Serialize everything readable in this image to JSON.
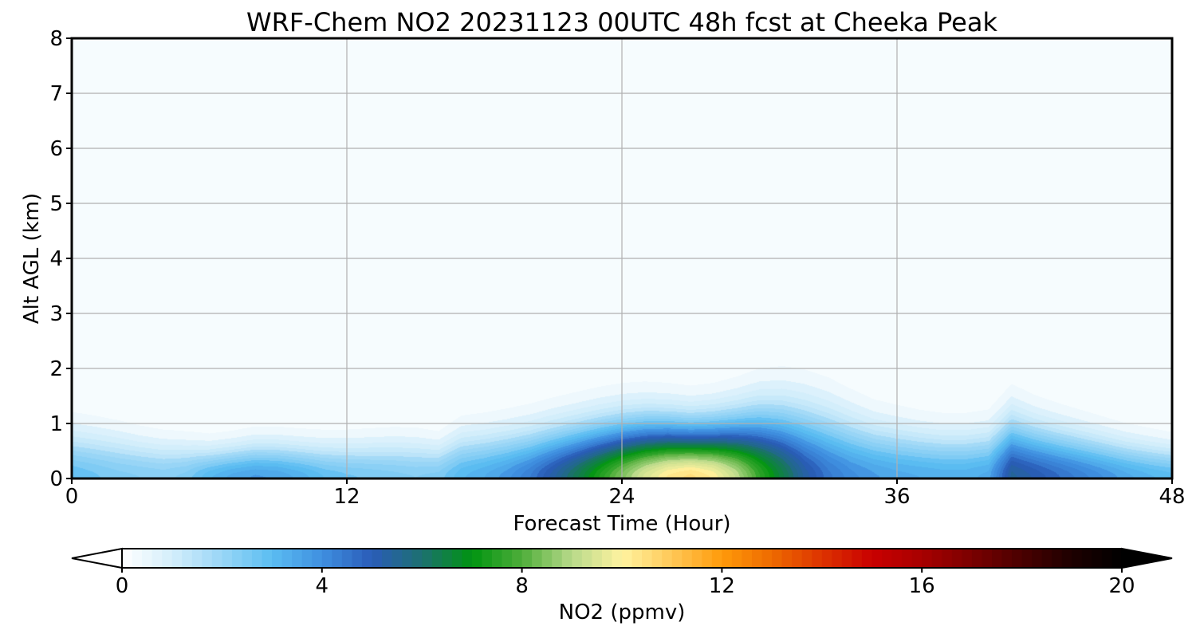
{
  "chart_data": {
    "type": "heatmap",
    "title": "WRF-Chem NO2  20231123 00UTC 48h fcst at Cheeka Peak",
    "xlabel": "Forecast Time (Hour)",
    "ylabel": "Alt AGL (km)",
    "xlim": [
      0,
      48
    ],
    "ylim": [
      0,
      8
    ],
    "x_ticks": [
      "0",
      "12",
      "24",
      "36",
      "48"
    ],
    "y_ticks": [
      "0",
      "1",
      "2",
      "3",
      "4",
      "5",
      "6",
      "7",
      "8"
    ],
    "grid": true,
    "colorbar": {
      "label": "NO2  (ppmv)",
      "range": [
        0,
        20
      ],
      "ticks": [
        "0",
        "4",
        "8",
        "12",
        "16",
        "20"
      ],
      "extend": "both",
      "colors": [
        {
          "v": 0,
          "c": "#ffffff"
        },
        {
          "v": 1,
          "c": "#d4eefb"
        },
        {
          "v": 2,
          "c": "#99d6f6"
        },
        {
          "v": 3,
          "c": "#5bbdf2"
        },
        {
          "v": 4,
          "c": "#3f8fe0"
        },
        {
          "v": 5,
          "c": "#2a5cb8"
        },
        {
          "v": 6,
          "c": "#1d7070"
        },
        {
          "v": 7,
          "c": "#009411"
        },
        {
          "v": 8,
          "c": "#4fae3a"
        },
        {
          "v": 9,
          "c": "#b8d98a"
        },
        {
          "v": 10,
          "c": "#fff3a0"
        },
        {
          "v": 11,
          "c": "#ffc857"
        },
        {
          "v": 12,
          "c": "#ff9a0a"
        },
        {
          "v": 13,
          "c": "#ee6a00"
        },
        {
          "v": 14,
          "c": "#dd3300"
        },
        {
          "v": 15,
          "c": "#c90000"
        },
        {
          "v": 16,
          "c": "#a80000"
        },
        {
          "v": 17,
          "c": "#7a0000"
        },
        {
          "v": 18,
          "c": "#4a0000"
        },
        {
          "v": 19,
          "c": "#1e0000"
        },
        {
          "v": 20,
          "c": "#000000"
        }
      ]
    },
    "field": {
      "hours": [
        0,
        1,
        2,
        3,
        4,
        5,
        6,
        7,
        8,
        9,
        10,
        11,
        12,
        13,
        14,
        15,
        16,
        17,
        18,
        19,
        20,
        21,
        22,
        23,
        24,
        25,
        26,
        27,
        28,
        29,
        30,
        31,
        32,
        33,
        34,
        35,
        36,
        37,
        38,
        39,
        40,
        41,
        42,
        43,
        44,
        45,
        46,
        47,
        48
      ],
      "surface_ppmv": [
        3.0,
        2.8,
        2.6,
        2.5,
        2.4,
        2.6,
        3.2,
        3.6,
        3.8,
        3.7,
        3.4,
        3.0,
        2.8,
        2.7,
        2.6,
        2.5,
        2.6,
        3.2,
        3.5,
        3.9,
        4.5,
        5.4,
        6.4,
        7.5,
        8.6,
        9.6,
        10.3,
        10.6,
        10.2,
        9.2,
        7.8,
        6.6,
        5.4,
        4.6,
        4.1,
        3.8,
        3.6,
        3.5,
        3.4,
        3.4,
        3.6,
        5.6,
        5.2,
        4.8,
        4.4,
        4.0,
        3.6,
        3.3,
        3.1
      ],
      "mixing_depth_km": [
        0.75,
        0.72,
        0.68,
        0.62,
        0.58,
        0.55,
        0.5,
        0.52,
        0.56,
        0.56,
        0.55,
        0.55,
        0.56,
        0.58,
        0.6,
        0.6,
        0.55,
        0.7,
        0.72,
        0.75,
        0.78,
        0.82,
        0.85,
        0.88,
        0.9,
        0.9,
        0.88,
        0.85,
        0.88,
        0.95,
        1.05,
        1.1,
        1.1,
        1.05,
        0.95,
        0.85,
        0.8,
        0.75,
        0.72,
        0.72,
        0.75,
        0.95,
        0.85,
        0.78,
        0.72,
        0.66,
        0.6,
        0.56,
        0.52
      ],
      "background_ppmv": 0.3
    }
  }
}
